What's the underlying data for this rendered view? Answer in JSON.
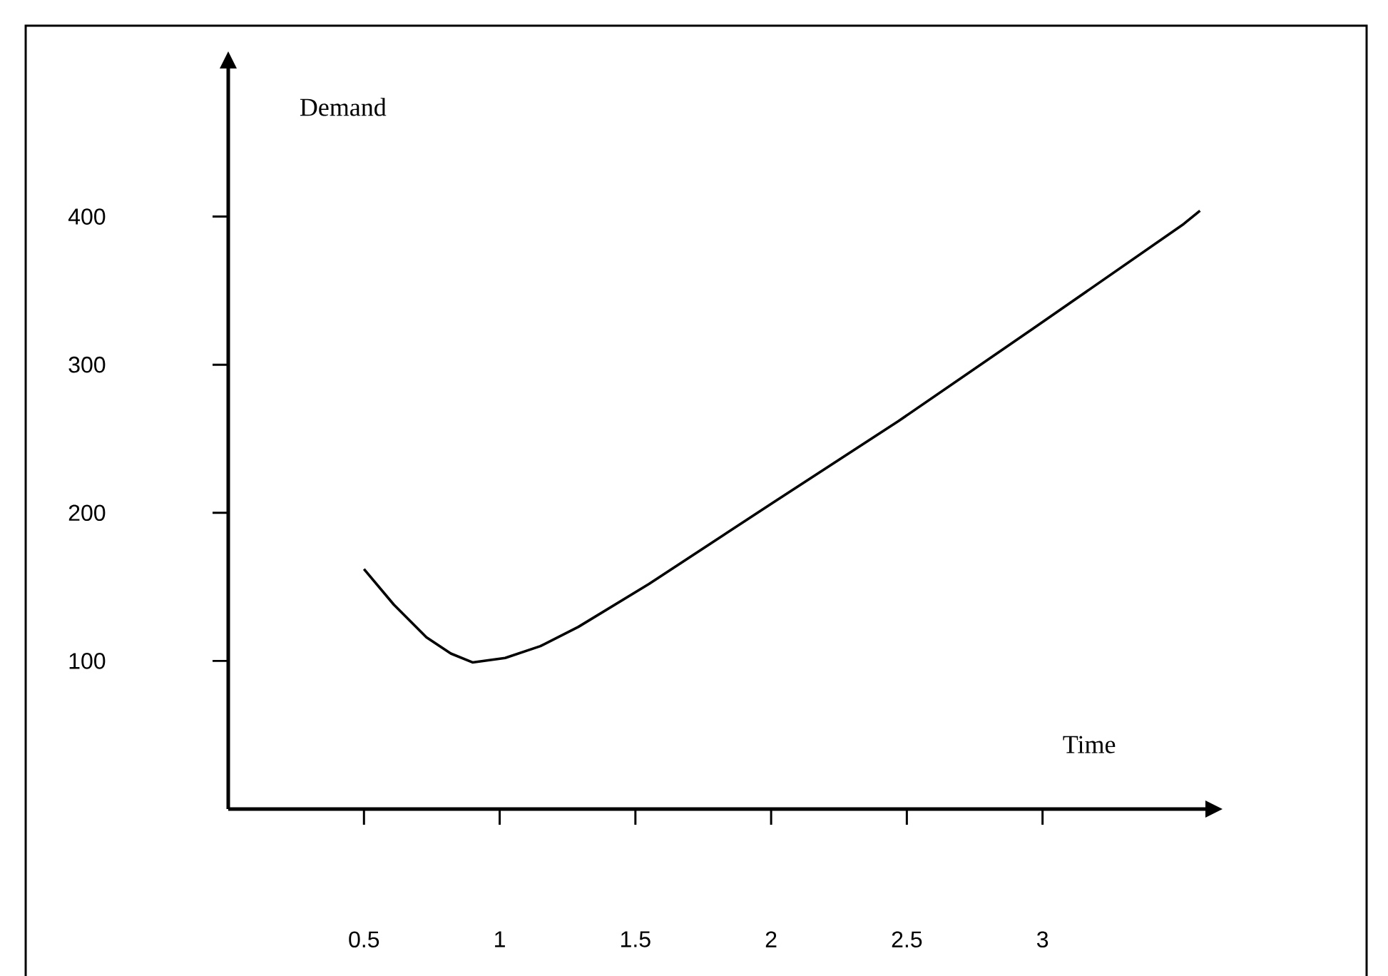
{
  "chart_data": {
    "type": "line",
    "xlabel": "Time",
    "ylabel": "Demand",
    "x": [
      0.5,
      0.61,
      0.73,
      0.82,
      0.9,
      1.02,
      1.15,
      1.29,
      1.55,
      2,
      2.47,
      2.97,
      3.52,
      3.58
    ],
    "values": [
      162,
      138,
      116,
      105,
      99,
      102,
      110,
      123,
      152,
      206,
      262,
      325,
      395,
      404
    ],
    "color": "#000000",
    "marker": "none",
    "line_style": "solid",
    "xlim": [
      0,
      3.6
    ],
    "ylim": [
      0,
      500
    ],
    "xticks": [
      0.5,
      1,
      1.5,
      2,
      2.5,
      3
    ],
    "yticks": [
      100,
      200,
      300,
      400
    ]
  }
}
